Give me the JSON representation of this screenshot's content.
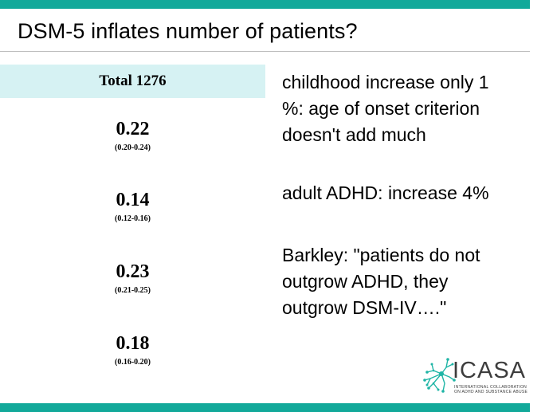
{
  "title": "DSM-5 inflates number of patients?",
  "table": {
    "header": "Total 1276",
    "rows": [
      {
        "value": "0.22",
        "ci": "(0.20-0.24)"
      },
      {
        "value": "0.14",
        "ci": "(0.12-0.16)"
      },
      {
        "value": "0.23",
        "ci": "(0.21-0.25)"
      },
      {
        "value": "0.18",
        "ci": "(0.16-0.20)"
      }
    ]
  },
  "bullets": [
    {
      "lines": [
        "childhood increase only 1",
        "%: age of onset criterion",
        "doesn't add much"
      ]
    },
    {
      "lines": [
        "adult ADHD: increase 4%"
      ]
    },
    {
      "lines": [
        "Barkley: \"patients do not",
        "outgrow ADHD, they",
        "outgrow DSM-IV….\""
      ]
    }
  ],
  "logo": {
    "name": "ICASA",
    "line1": "INTERNATIONAL COLLABORATION",
    "line2": "ON ADHD AND SUBSTANCE ABUSE",
    "icon": "neuron-network-icon"
  },
  "colors": {
    "accent": "#12a99a",
    "header_fill": "#d6f2f3",
    "text": "#000000",
    "logo_text": "#3d3d3d"
  }
}
